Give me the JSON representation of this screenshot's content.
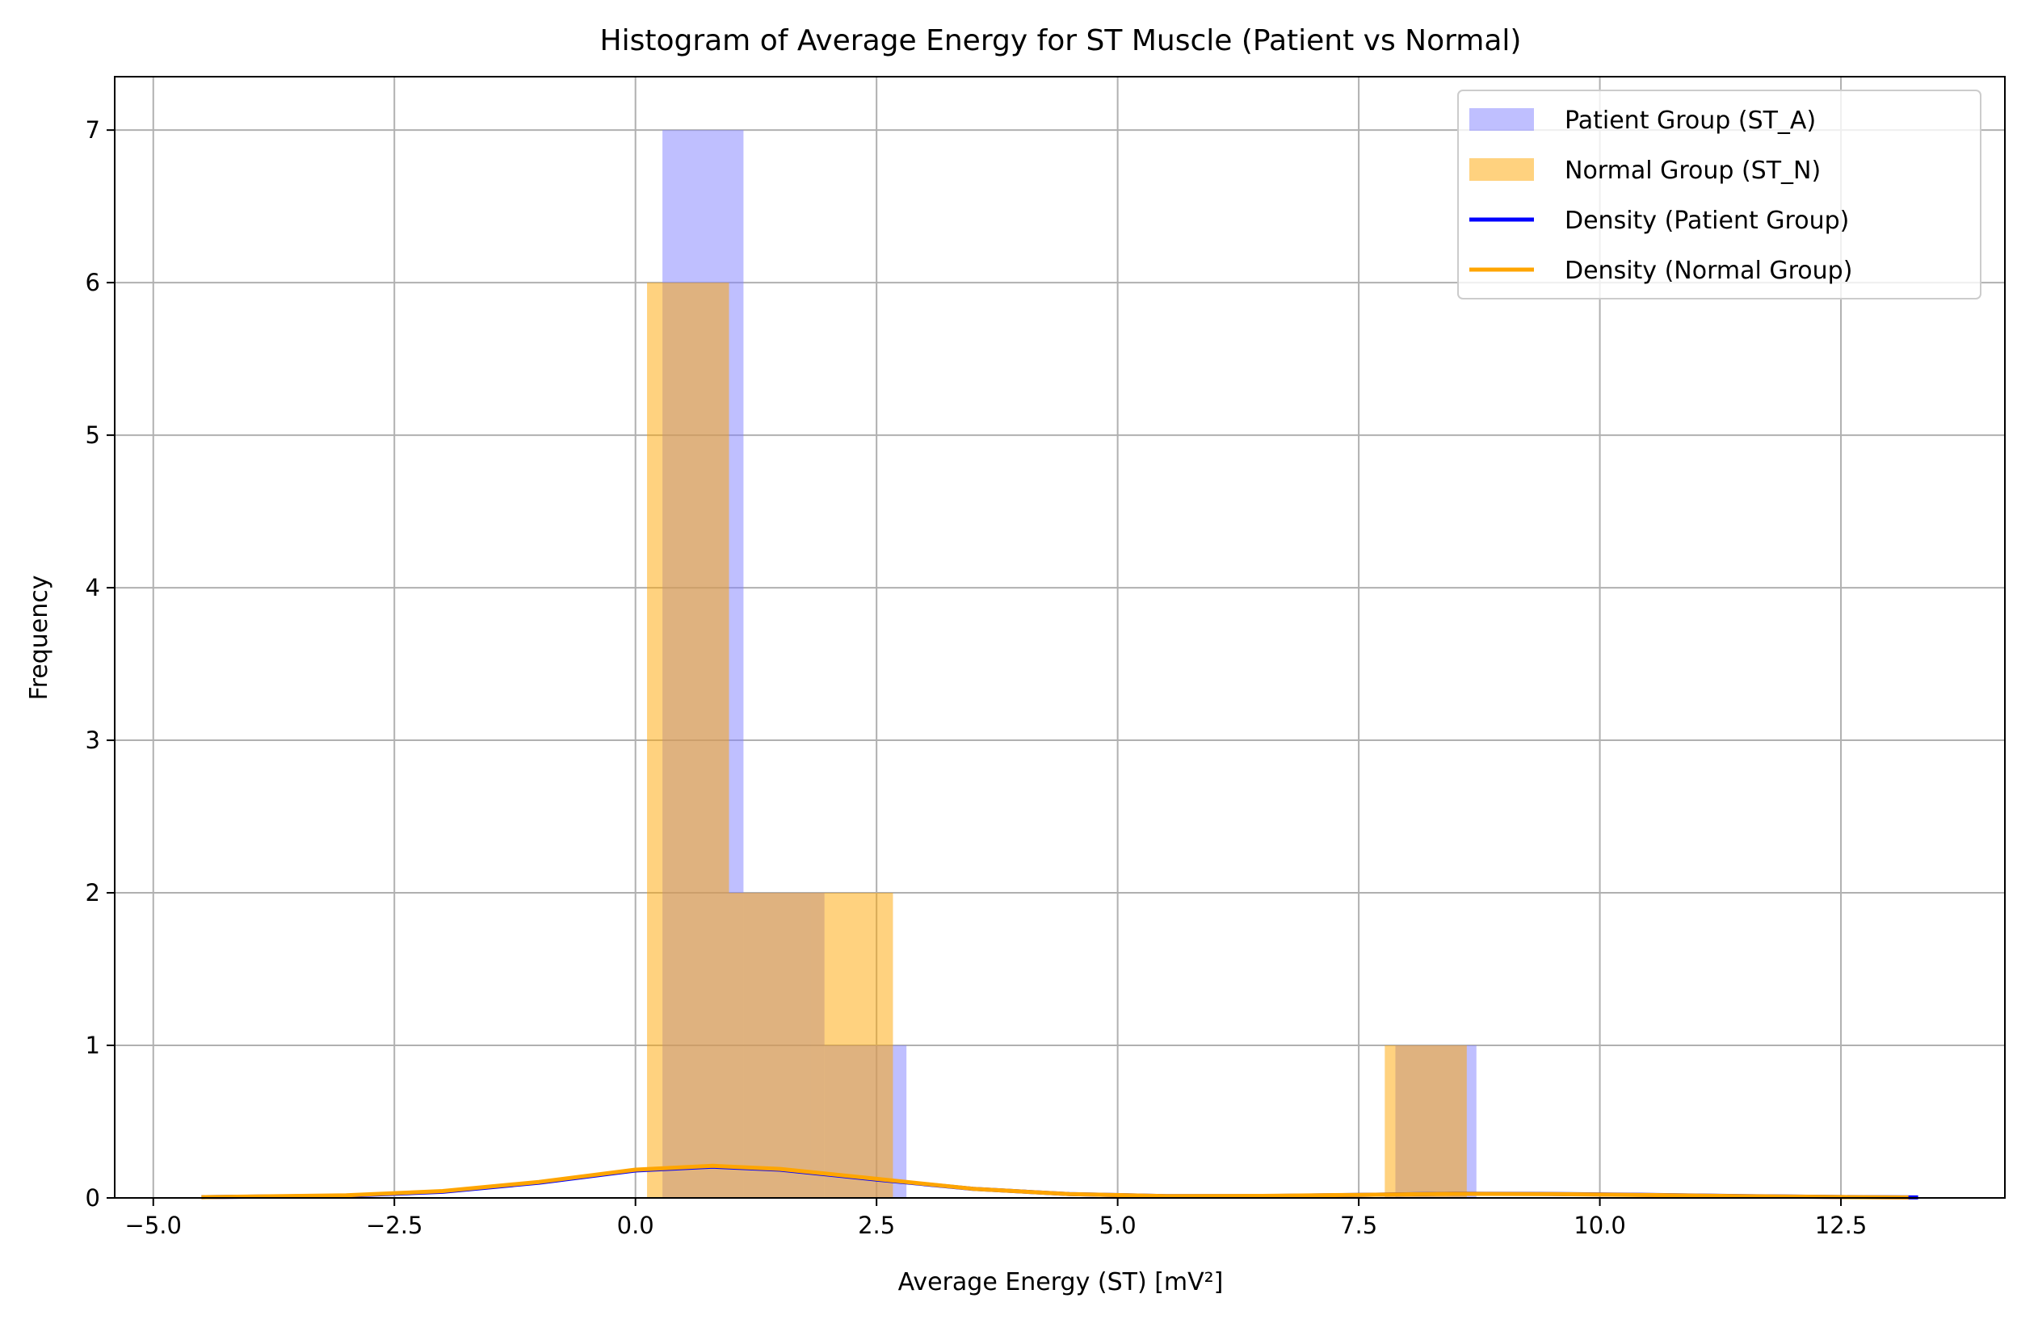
{
  "chart_data": {
    "type": "bar",
    "title": "Histogram of Average Energy for ST Muscle (Patient vs Normal)",
    "xlabel": "Average Energy (ST) [mV²]",
    "ylabel": "Frequency",
    "xlim": [
      -5.4,
      14.2
    ],
    "ylim": [
      0,
      7.35
    ],
    "xticks": [
      -5.0,
      -2.5,
      0.0,
      2.5,
      5.0,
      7.5,
      10.0,
      12.5
    ],
    "xtick_labels": [
      "−5.0",
      "−2.5",
      "0.0",
      "2.5",
      "5.0",
      "7.5",
      "10.0",
      "12.5"
    ],
    "yticks": [
      0,
      1,
      2,
      3,
      4,
      5,
      6,
      7
    ],
    "ytick_labels": [
      "0",
      "1",
      "2",
      "3",
      "4",
      "5",
      "6",
      "7"
    ],
    "grid": true,
    "legend_position": "top-right",
    "colors": {
      "patient_bar": "#8080ff",
      "normal_bar": "#ffa500",
      "patient_density": "#0000ff",
      "normal_density": "#ffa500"
    },
    "series": [
      {
        "name": "Patient Group (ST_A)",
        "kind": "histogram",
        "bins": [
          {
            "x0": 0.28,
            "x1": 1.12,
            "count": 7
          },
          {
            "x0": 1.12,
            "x1": 1.96,
            "count": 2
          },
          {
            "x0": 1.96,
            "x1": 2.81,
            "count": 1
          },
          {
            "x0": 7.88,
            "x1": 8.72,
            "count": 1
          }
        ]
      },
      {
        "name": "Normal Group (ST_N)",
        "kind": "histogram",
        "bins": [
          {
            "x0": 0.12,
            "x1": 0.97,
            "count": 6
          },
          {
            "x0": 0.97,
            "x1": 1.82,
            "count": 2
          },
          {
            "x0": 1.82,
            "x1": 2.67,
            "count": 2
          },
          {
            "x0": 7.77,
            "x1": 8.62,
            "count": 1
          }
        ]
      },
      {
        "name": "Density (Patient Group)",
        "kind": "line",
        "x": [
          -4.5,
          -3.0,
          -2.0,
          -1.0,
          0.0,
          0.8,
          1.5,
          2.5,
          3.5,
          4.5,
          5.5,
          6.5,
          7.5,
          8.5,
          9.5,
          10.5,
          11.5,
          12.5,
          13.3
        ],
        "y": [
          0.005,
          0.015,
          0.04,
          0.1,
          0.18,
          0.205,
          0.185,
          0.12,
          0.06,
          0.025,
          0.012,
          0.012,
          0.02,
          0.028,
          0.026,
          0.02,
          0.012,
          0.006,
          0.003
        ]
      },
      {
        "name": "Density (Normal Group)",
        "kind": "line",
        "x": [
          -4.5,
          -3.0,
          -2.0,
          -1.0,
          0.0,
          0.8,
          1.5,
          2.5,
          3.5,
          4.5,
          5.5,
          6.5,
          7.5,
          8.5,
          9.5,
          10.5,
          11.5,
          12.5,
          13.2
        ],
        "y": [
          0.005,
          0.017,
          0.045,
          0.105,
          0.185,
          0.21,
          0.19,
          0.125,
          0.06,
          0.025,
          0.012,
          0.013,
          0.02,
          0.027,
          0.025,
          0.019,
          0.011,
          0.006,
          0.003
        ]
      }
    ]
  }
}
